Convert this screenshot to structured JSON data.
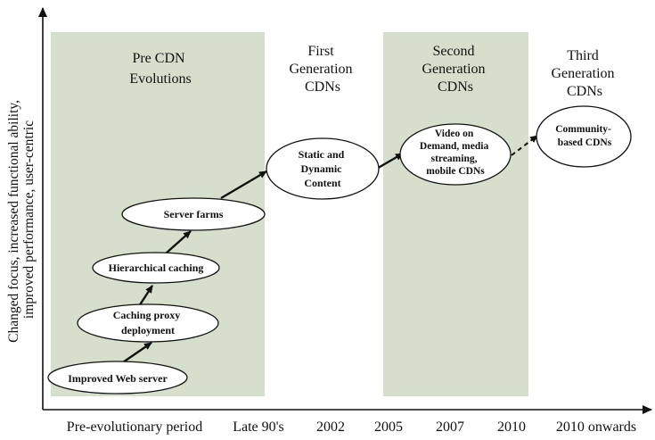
{
  "yaxis_label": [
    "Changed focus, increased functional ability,",
    "improved performance, user-centric"
  ],
  "phases": {
    "pre_cdn": [
      "Pre CDN",
      "Evolutions"
    ],
    "first_gen": [
      "First",
      "Generation",
      "CDNs"
    ],
    "second_gen": [
      "Second",
      "Generation",
      "CDNs"
    ],
    "third_gen": [
      "Third",
      "Generation",
      "CDNs"
    ]
  },
  "nodes": {
    "improved_web_server": [
      "Improved Web server"
    ],
    "caching_proxy": [
      "Caching proxy",
      "deployment"
    ],
    "hierarchical_caching": [
      "Hierarchical caching"
    ],
    "server_farms": [
      "Server farms"
    ],
    "static_dynamic": [
      "Static and",
      "Dynamic",
      "Content"
    ],
    "video_on_demand": [
      "Video on",
      "Demand, media",
      "streaming,",
      "mobile CDNs"
    ],
    "community_based": [
      "Community-",
      "based CDNs"
    ]
  },
  "timeline": {
    "pre_evolutionary": "Pre-evolutionary period",
    "late_90s": "Late 90's",
    "y2002": "2002",
    "y2005": "2005",
    "y2007": "2007",
    "y2010": "2010",
    "onwards": "2010 onwards"
  },
  "colors": {
    "band_fill": "#d6dfcc",
    "ink": "#111111"
  }
}
